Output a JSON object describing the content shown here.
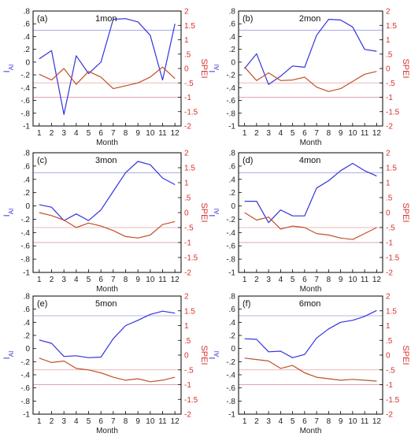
{
  "colors": {
    "iai": "#3333dd",
    "spei": "#c0502a",
    "iai_axis": "#3a3ad8",
    "spei_axis": "#d83030",
    "ref_blue": "#9a9ae6",
    "ref_red": "#e8a0a0"
  },
  "chart_data": [
    {
      "type": "line",
      "label": "(a)",
      "title": "1mon",
      "xlabel": "Month",
      "ylabel_left": "I_AI",
      "ylabel_right": "SPEI",
      "x": [
        1,
        2,
        3,
        4,
        5,
        6,
        7,
        8,
        9,
        10,
        11,
        12
      ],
      "ylim_left": [
        -1,
        0.8
      ],
      "ylim_right": [
        -2,
        2
      ],
      "series": [
        {
          "axis": "left",
          "values": [
            0.05,
            0.18,
            -0.82,
            0.1,
            -0.18,
            0.0,
            0.67,
            0.68,
            0.63,
            0.42,
            -0.28,
            0.6
          ]
        },
        {
          "axis": "right",
          "values": [
            -0.2,
            -0.4,
            0.0,
            -0.55,
            -0.1,
            -0.3,
            -0.7,
            -0.6,
            -0.5,
            -0.3,
            0.05,
            -0.35
          ]
        }
      ],
      "ref_left": [
        0.5,
        -0.55
      ],
      "ref_right": [
        -0.5,
        -1.0
      ]
    },
    {
      "type": "line",
      "label": "(b)",
      "title": "2mon",
      "xlabel": "Month",
      "ylabel_left": "I_AI",
      "ylabel_right": "SPEI",
      "x": [
        1,
        2,
        3,
        4,
        5,
        6,
        7,
        8,
        9,
        10,
        11,
        12
      ],
      "ylim_left": [
        -1,
        0.8
      ],
      "ylim_right": [
        -2,
        2
      ],
      "series": [
        {
          "axis": "left",
          "values": [
            -0.1,
            0.13,
            -0.35,
            -0.22,
            -0.06,
            -0.08,
            0.42,
            0.67,
            0.66,
            0.55,
            0.2,
            0.17
          ]
        },
        {
          "axis": "right",
          "values": [
            0.05,
            -0.42,
            -0.15,
            -0.42,
            -0.4,
            -0.3,
            -0.65,
            -0.8,
            -0.7,
            -0.45,
            -0.2,
            -0.1
          ]
        }
      ],
      "ref_left": [
        0.5,
        -0.55
      ],
      "ref_right": [
        -0.5,
        -1.0
      ]
    },
    {
      "type": "line",
      "label": "(c)",
      "title": "3mon",
      "xlabel": "Month",
      "ylabel_left": "I_AI",
      "ylabel_right": "SPEI",
      "x": [
        1,
        2,
        3,
        4,
        5,
        6,
        7,
        8,
        9,
        10,
        11,
        12
      ],
      "ylim_left": [
        -1,
        0.8
      ],
      "ylim_right": [
        -2,
        2
      ],
      "series": [
        {
          "axis": "left",
          "values": [
            0.02,
            -0.02,
            -0.22,
            -0.12,
            -0.22,
            -0.06,
            0.22,
            0.5,
            0.67,
            0.62,
            0.42,
            0.32
          ]
        },
        {
          "axis": "right",
          "values": [
            0.0,
            -0.1,
            -0.25,
            -0.5,
            -0.35,
            -0.45,
            -0.6,
            -0.8,
            -0.85,
            -0.75,
            -0.4,
            -0.3
          ]
        }
      ],
      "ref_left": [
        0.5,
        -0.55
      ],
      "ref_right": [
        -0.5,
        -1.0
      ]
    },
    {
      "type": "line",
      "label": "(d)",
      "title": "4mon",
      "xlabel": "Month",
      "ylabel_left": "I_AI",
      "ylabel_right": "SPEI",
      "x": [
        1,
        2,
        3,
        4,
        5,
        6,
        7,
        8,
        9,
        10,
        11,
        12
      ],
      "ylim_left": [
        -1,
        0.8
      ],
      "ylim_right": [
        -2,
        2
      ],
      "series": [
        {
          "axis": "left",
          "values": [
            0.07,
            0.07,
            -0.25,
            -0.06,
            -0.15,
            -0.15,
            0.27,
            0.38,
            0.53,
            0.64,
            0.53,
            0.45
          ]
        },
        {
          "axis": "right",
          "values": [
            0.0,
            -0.25,
            -0.15,
            -0.55,
            -0.45,
            -0.5,
            -0.7,
            -0.75,
            -0.85,
            -0.9,
            -0.7,
            -0.5
          ]
        }
      ],
      "ref_left": [
        0.5,
        -0.55
      ],
      "ref_right": [
        -0.5,
        -1.0
      ]
    },
    {
      "type": "line",
      "label": "(e)",
      "title": "5mon",
      "xlabel": "Month",
      "ylabel_left": "I_AI",
      "ylabel_right": "SPEI",
      "x": [
        1,
        2,
        3,
        4,
        5,
        6,
        7,
        8,
        9,
        10,
        11,
        12
      ],
      "ylim_left": [
        -1,
        0.8
      ],
      "ylim_right": [
        -2,
        2
      ],
      "series": [
        {
          "axis": "left",
          "values": [
            0.13,
            0.08,
            -0.12,
            -0.11,
            -0.14,
            -0.13,
            0.15,
            0.35,
            0.43,
            0.52,
            0.57,
            0.54
          ]
        },
        {
          "axis": "right",
          "values": [
            -0.1,
            -0.25,
            -0.2,
            -0.45,
            -0.5,
            -0.6,
            -0.75,
            -0.85,
            -0.8,
            -0.9,
            -0.85,
            -0.75
          ]
        }
      ],
      "ref_left": [
        0.5,
        -0.55
      ],
      "ref_right": [
        -0.5,
        -1.0
      ]
    },
    {
      "type": "line",
      "label": "(f)",
      "title": "6mon",
      "xlabel": "Month",
      "ylabel_left": "I_AI",
      "ylabel_right": "SPEI",
      "x": [
        1,
        2,
        3,
        4,
        5,
        6,
        7,
        8,
        9,
        10,
        11,
        12
      ],
      "ylim_left": [
        -1,
        0.8
      ],
      "ylim_right": [
        -2,
        2
      ],
      "series": [
        {
          "axis": "left",
          "values": [
            0.15,
            0.14,
            -0.05,
            -0.04,
            -0.14,
            -0.09,
            0.16,
            0.3,
            0.4,
            0.43,
            0.49,
            0.58
          ]
        },
        {
          "axis": "right",
          "values": [
            -0.1,
            -0.15,
            -0.2,
            -0.45,
            -0.35,
            -0.6,
            -0.75,
            -0.8,
            -0.85,
            -0.82,
            -0.85,
            -0.88
          ]
        }
      ],
      "ref_left": [
        0.5,
        -0.55
      ],
      "ref_right": [
        -0.5,
        -1.0
      ]
    }
  ]
}
